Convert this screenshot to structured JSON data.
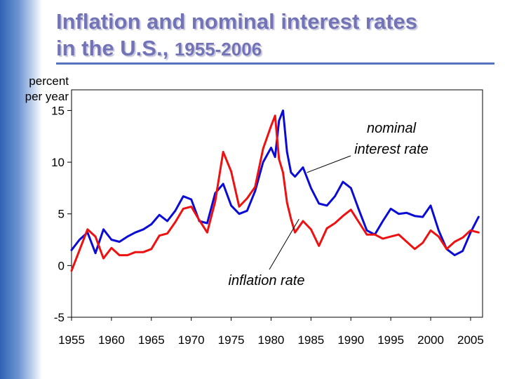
{
  "title": {
    "line1": "Inflation and nominal interest rates",
    "line2": "in the U.S.,",
    "years": "1955-2006"
  },
  "colors": {
    "title": "#7373b8",
    "rule": "#5673c2",
    "nominal": "#0b0bd6",
    "inflation": "#ee1111",
    "axis": "#000000"
  },
  "chart_data": {
    "type": "line",
    "title": "Inflation and nominal interest rates in the U.S., 1955-2006",
    "ylabel": "percent per year",
    "ylabel_lines": [
      "percent",
      "per year"
    ],
    "xlabel": "",
    "xlim": [
      1955,
      2006.5
    ],
    "ylim": [
      -5,
      17
    ],
    "xticks": [
      1955,
      1960,
      1965,
      1970,
      1975,
      1980,
      1985,
      1990,
      1995,
      2000,
      2005
    ],
    "yticks": [
      -5,
      0,
      5,
      10,
      15
    ],
    "grid": false,
    "annotations": [
      {
        "text_lines": [
          "nominal",
          "interest rate"
        ],
        "series": "nominal interest rate",
        "points_to": [
          1984.5,
          9.0
        ]
      },
      {
        "text": "inflation rate",
        "series": "inflation rate",
        "points_to": [
          1983.5,
          4.5
        ]
      }
    ],
    "series": [
      {
        "name": "nominal interest rate",
        "x": [
          1955,
          1956,
          1957,
          1958,
          1959,
          1960,
          1961,
          1962,
          1963,
          1964,
          1965,
          1966,
          1967,
          1968,
          1969,
          1970,
          1971,
          1972,
          1973,
          1974,
          1975,
          1976,
          1977,
          1978,
          1979,
          1980,
          1980.5,
          1981,
          1981.5,
          1982,
          1982.5,
          1983,
          1984,
          1985,
          1986,
          1987,
          1988,
          1989,
          1990,
          1991,
          1992,
          1993,
          1994,
          1995,
          1996,
          1997,
          1998,
          1999,
          2000,
          2001,
          2002,
          2003,
          2004,
          2005,
          2006
        ],
        "values": [
          1.5,
          2.5,
          3.2,
          1.2,
          3.5,
          2.5,
          2.3,
          2.8,
          3.2,
          3.5,
          4.0,
          4.9,
          4.3,
          5.3,
          6.7,
          6.4,
          4.3,
          4.1,
          7.0,
          7.9,
          5.8,
          5.0,
          5.3,
          7.2,
          10.0,
          11.4,
          10.5,
          14.0,
          15.0,
          11.0,
          9.0,
          8.6,
          9.5,
          7.5,
          6.0,
          5.8,
          6.7,
          8.1,
          7.5,
          5.4,
          3.4,
          3.0,
          4.3,
          5.5,
          5.0,
          5.1,
          4.8,
          4.7,
          5.8,
          3.4,
          1.6,
          1.0,
          1.4,
          3.2,
          4.7
        ]
      },
      {
        "name": "inflation rate",
        "x": [
          1955,
          1956,
          1957,
          1958,
          1959,
          1960,
          1961,
          1962,
          1963,
          1964,
          1965,
          1966,
          1967,
          1968,
          1969,
          1970,
          1971,
          1972,
          1973,
          1974,
          1975,
          1976,
          1977,
          1978,
          1979,
          1980,
          1980.5,
          1981,
          1981.5,
          1982,
          1982.5,
          1983,
          1984,
          1985,
          1986,
          1987,
          1988,
          1989,
          1990,
          1991,
          1992,
          1993,
          1994,
          1995,
          1996,
          1997,
          1998,
          1999,
          2000,
          2001,
          2002,
          2003,
          2004,
          2005,
          2006
        ],
        "values": [
          -0.5,
          1.5,
          3.5,
          2.8,
          0.7,
          1.7,
          1.0,
          1.0,
          1.3,
          1.3,
          1.6,
          2.9,
          3.1,
          4.2,
          5.5,
          5.7,
          4.4,
          3.2,
          6.2,
          11.0,
          9.1,
          5.7,
          6.5,
          7.6,
          11.3,
          13.5,
          14.5,
          10.3,
          9.0,
          6.1,
          4.5,
          3.2,
          4.3,
          3.5,
          1.9,
          3.6,
          4.1,
          4.8,
          5.4,
          4.2,
          3.0,
          3.0,
          2.6,
          2.8,
          3.0,
          2.3,
          1.6,
          2.2,
          3.4,
          2.8,
          1.6,
          2.3,
          2.7,
          3.4,
          3.2
        ]
      }
    ]
  }
}
